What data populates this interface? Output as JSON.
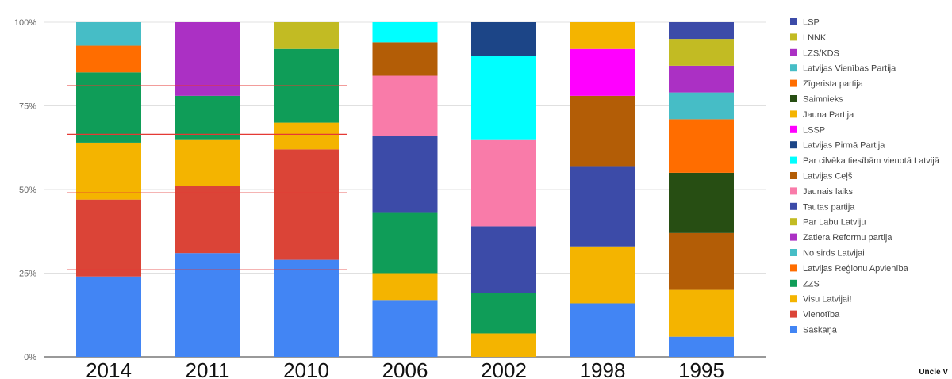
{
  "credit": "Uncle V",
  "chart_data": {
    "type": "bar",
    "stacked": true,
    "normalized": true,
    "categories": [
      "2014",
      "2011",
      "2010",
      "2006",
      "2002",
      "1998",
      "1995"
    ],
    "y_ticks": [
      "0%",
      "25%",
      "50%",
      "75%",
      "100%"
    ],
    "ylim": [
      0,
      100
    ],
    "grid": true,
    "legend_position": "right",
    "reference_lines": [
      81,
      66.5,
      49,
      26
    ],
    "reference_line_color": "#e53935",
    "series": [
      {
        "name": "Saskaņa",
        "color": "#4285f4",
        "values": [
          24,
          31,
          29,
          17,
          0,
          16,
          6
        ]
      },
      {
        "name": "Vienotība",
        "color": "#db4437",
        "values": [
          23,
          20,
          33,
          0,
          0,
          0,
          0
        ]
      },
      {
        "name": "Visu Latvijai!",
        "color": "#f4b400",
        "values": [
          17,
          14,
          8,
          8,
          7,
          17,
          14
        ]
      },
      {
        "name": "ZZS",
        "color": "#0f9d58",
        "values": [
          21,
          13,
          22,
          18,
          12,
          0,
          0
        ]
      },
      {
        "name": "Latvijas Reģionu Apvienība",
        "color": "#ff6d00",
        "values": [
          8,
          0,
          0,
          0,
          0,
          0,
          0
        ]
      },
      {
        "name": "No sirds Latvijai",
        "color": "#46bdc6",
        "values": [
          7,
          0,
          0,
          0,
          0,
          0,
          0
        ]
      },
      {
        "name": "Zatlera Reformu partija",
        "color": "#ab30c4",
        "values": [
          0,
          22,
          0,
          0,
          0,
          0,
          0
        ]
      },
      {
        "name": "Par Labu Latviju",
        "color": "#c2bb23",
        "values": [
          0,
          0,
          8,
          0,
          0,
          0,
          0
        ]
      },
      {
        "name": "Tautas partija",
        "color": "#3c4ba8",
        "values": [
          0,
          0,
          0,
          23,
          20,
          24,
          0
        ]
      },
      {
        "name": "Jaunais laiks",
        "color": "#f97ba9",
        "values": [
          0,
          0,
          0,
          18,
          26,
          0,
          0
        ]
      },
      {
        "name": "Latvijas Ceļš",
        "color": "#b35d06",
        "values": [
          0,
          0,
          0,
          10,
          0,
          21,
          17
        ]
      },
      {
        "name": "Par cilvēka tiesībām vienotā Latvijā",
        "color": "#00ffff",
        "values": [
          0,
          0,
          0,
          6,
          25,
          0,
          0
        ]
      },
      {
        "name": "Latvijas Pirmā Partija",
        "color": "#1c4587",
        "values": [
          0,
          0,
          0,
          0,
          10,
          0,
          0
        ]
      },
      {
        "name": "LSSP",
        "color": "#ff00ff",
        "values": [
          0,
          0,
          0,
          0,
          0,
          14,
          0
        ]
      },
      {
        "name": "Jauna Partija",
        "color": "#f4b400",
        "values": [
          0,
          0,
          0,
          0,
          0,
          8,
          0
        ]
      },
      {
        "name": "Saimnieks",
        "color": "#274e13",
        "values": [
          0,
          0,
          0,
          0,
          0,
          0,
          18
        ]
      },
      {
        "name": "Zīgerista partija",
        "color": "#ff6d00",
        "values": [
          0,
          0,
          0,
          0,
          0,
          0,
          16
        ]
      },
      {
        "name": "Latvijas Vienības Partija",
        "color": "#46bdc6",
        "values": [
          0,
          0,
          0,
          0,
          0,
          0,
          8
        ]
      },
      {
        "name": "LZS/KDS",
        "color": "#ab30c4",
        "values": [
          0,
          0,
          0,
          0,
          0,
          0,
          8
        ]
      },
      {
        "name": "LNNK",
        "color": "#c2bb23",
        "values": [
          0,
          0,
          0,
          0,
          0,
          0,
          8
        ]
      },
      {
        "name": "LSP",
        "color": "#3c4ba8",
        "values": [
          0,
          0,
          0,
          0,
          0,
          0,
          5
        ]
      }
    ]
  }
}
